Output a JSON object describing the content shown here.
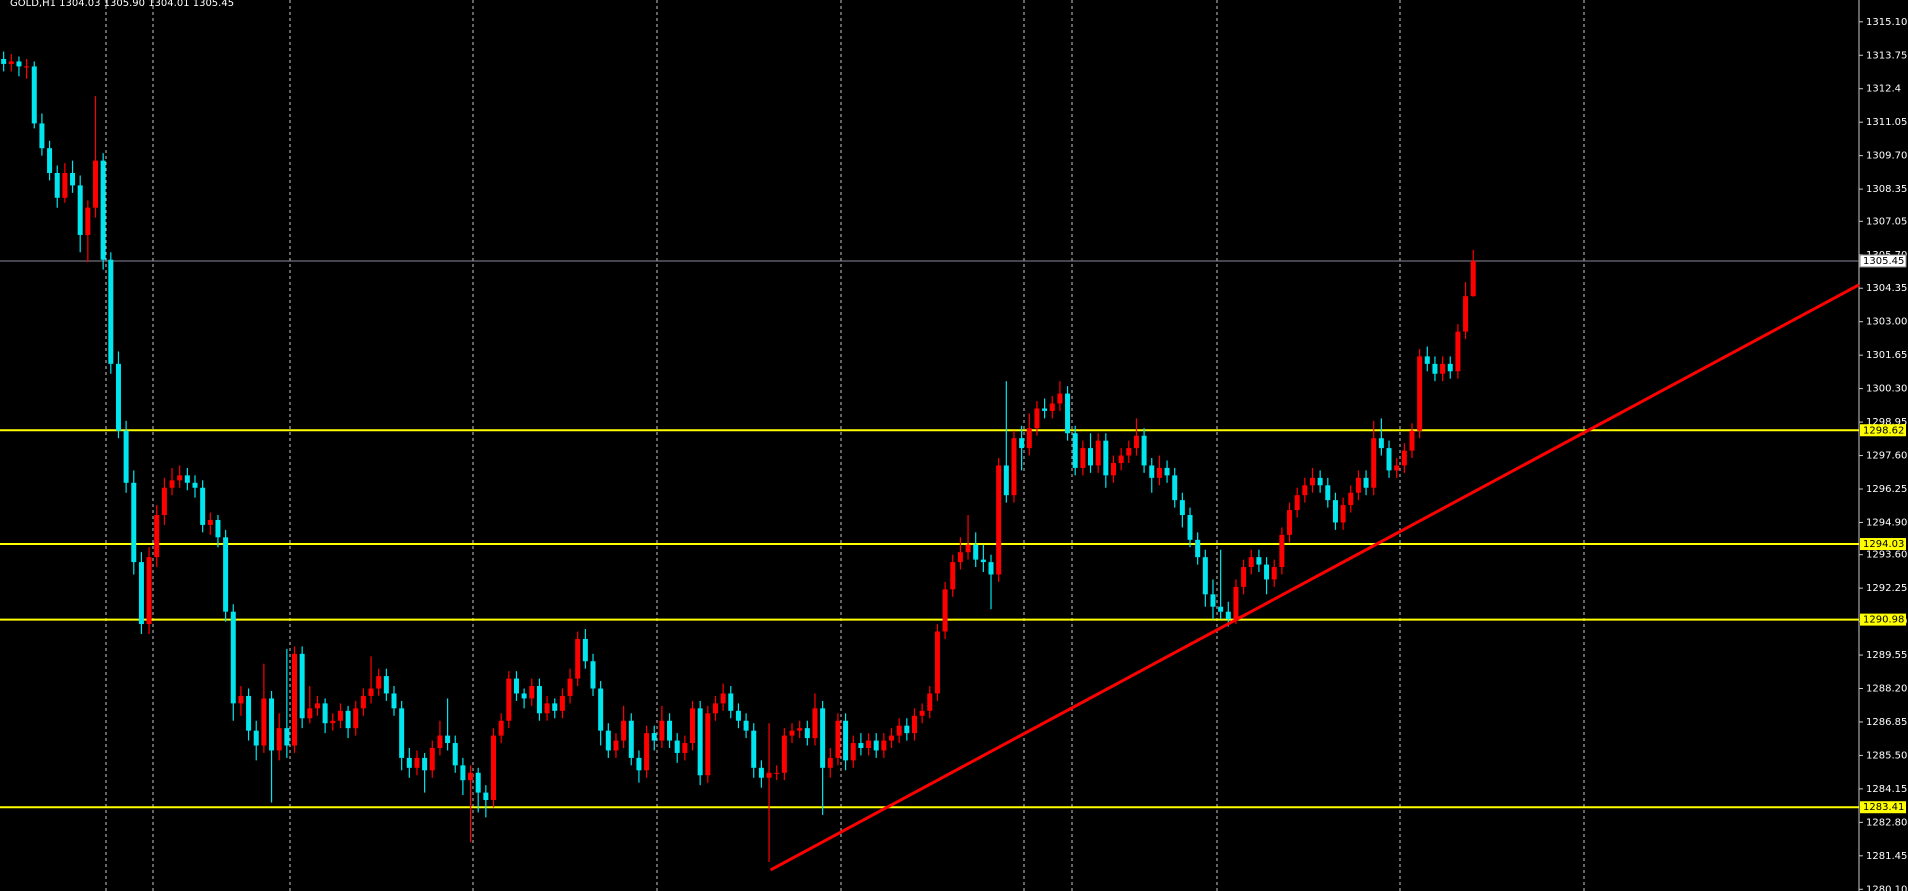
{
  "chart_data": {
    "type": "candlestick",
    "title": "GOLD,H1  1304.03 1305.90 1304.01 1305.45",
    "up_color": "#ff0000",
    "down_color": "#00e5ee",
    "level_color": "#ffff00",
    "price_line_color": "#8a8a9a",
    "ylim": [
      1280.03,
      1315.98
    ],
    "yticks": [
      {
        "value": 1315.1,
        "label": "1315.10"
      },
      1313.75,
      1312.4,
      1311.05,
      {
        "value": 1309.7,
        "label": "1309.70"
      },
      1308.35,
      1307.05,
      {
        "value": 1305.7,
        "label": "1305.70"
      },
      1304.35,
      {
        "value": 1303,
        "label": "1303.00"
      },
      1301.65,
      {
        "value": 1300.3,
        "label": "1300.30"
      },
      1298.95,
      {
        "value": 1297.6,
        "label": "1297.60"
      },
      1296.25,
      {
        "value": 1294.9,
        "label": "1294.90"
      },
      {
        "value": 1293.6,
        "label": "1293.60"
      },
      1292.25,
      {
        "value": 1290.9,
        "label": "1290.90"
      },
      1289.55,
      {
        "value": 1288.2,
        "label": "1288.20"
      },
      1286.85,
      {
        "value": 1285.5,
        "label": "1285.50"
      },
      1284.15,
      {
        "value": 1282.8,
        "label": "1282.80"
      },
      1281.45,
      {
        "value": 1280.1,
        "label": "1280.10"
      }
    ],
    "levels": [
      1298.62,
      1294.03,
      1290.98,
      1283.41
    ],
    "price_line": 1305.45,
    "trendline": {
      "x": [
        100.2,
        242.4
      ],
      "y": [
        1280.88,
        1304.49
      ],
      "color": "#ff0000"
    },
    "candles": [
      [
        1313.6,
        1313.9,
        1313.1,
        1313.4
      ],
      [
        1313.4,
        1313.8,
        1313.1,
        1313.5
      ],
      [
        1313.5,
        1313.7,
        1312.9,
        1313.3
      ],
      [
        1313.3,
        1313.6,
        1312.8,
        1313.3
      ],
      [
        1313.3,
        1313.5,
        1310.8,
        1311.0
      ],
      [
        1311.0,
        1311.4,
        1309.7,
        1310.0
      ],
      [
        1310.0,
        1310.3,
        1308.7,
        1309.0
      ],
      [
        1309.0,
        1309.3,
        1307.6,
        1308.0
      ],
      [
        1308.0,
        1309.4,
        1307.8,
        1309.0
      ],
      [
        1309.0,
        1309.5,
        1308.2,
        1308.5
      ],
      [
        1308.5,
        1308.9,
        1305.8,
        1306.5
      ],
      [
        1306.5,
        1307.9,
        1305.4,
        1307.6
      ],
      [
        1307.6,
        1312.1,
        1307.2,
        1309.5
      ],
      [
        1309.5,
        1309.8,
        1305.1,
        1305.5
      ],
      [
        1305.5,
        1305.8,
        1300.9,
        1301.3
      ],
      [
        1301.3,
        1301.8,
        1298.3,
        1298.6
      ],
      [
        1298.6,
        1299.0,
        1296.1,
        1296.5
      ],
      [
        1296.5,
        1297.0,
        1292.8,
        1293.3
      ],
      [
        1293.3,
        1293.7,
        1290.4,
        1290.8
      ],
      [
        1290.8,
        1293.9,
        1290.4,
        1293.5
      ],
      [
        1293.5,
        1295.6,
        1293.1,
        1295.2
      ],
      [
        1295.2,
        1296.7,
        1294.8,
        1296.3
      ],
      [
        1296.3,
        1297.1,
        1296.0,
        1296.6
      ],
      [
        1296.6,
        1297.2,
        1296.3,
        1296.8
      ],
      [
        1296.8,
        1297.1,
        1296.2,
        1296.5
      ],
      [
        1296.5,
        1296.8,
        1295.9,
        1296.3
      ],
      [
        1296.3,
        1296.6,
        1294.5,
        1294.8
      ],
      [
        1294.8,
        1295.3,
        1294.4,
        1295.0
      ],
      [
        1295.0,
        1295.2,
        1293.9,
        1294.3
      ],
      [
        1294.3,
        1294.6,
        1290.9,
        1291.3
      ],
      [
        1291.3,
        1291.6,
        1286.9,
        1287.6
      ],
      [
        1287.6,
        1288.3,
        1287.1,
        1287.9
      ],
      [
        1287.9,
        1288.2,
        1286.1,
        1286.5
      ],
      [
        1286.5,
        1286.9,
        1285.3,
        1285.9
      ],
      [
        1285.9,
        1289.2,
        1285.6,
        1287.8
      ],
      [
        1287.8,
        1288.1,
        1283.6,
        1285.7
      ],
      [
        1285.7,
        1287.2,
        1285.3,
        1286.6
      ],
      [
        1286.6,
        1289.8,
        1285.4,
        1285.9
      ],
      [
        1285.9,
        1289.9,
        1285.6,
        1289.6
      ],
      [
        1289.6,
        1289.9,
        1286.6,
        1287.0
      ],
      [
        1287.0,
        1288.3,
        1286.8,
        1287.4
      ],
      [
        1287.4,
        1287.9,
        1287.1,
        1287.6
      ],
      [
        1287.6,
        1287.8,
        1286.4,
        1286.8
      ],
      [
        1286.8,
        1287.2,
        1286.5,
        1286.9
      ],
      [
        1286.9,
        1287.6,
        1286.6,
        1287.3
      ],
      [
        1287.3,
        1287.5,
        1286.2,
        1286.6
      ],
      [
        1286.6,
        1287.7,
        1286.3,
        1287.4
      ],
      [
        1287.4,
        1288.2,
        1287.1,
        1287.9
      ],
      [
        1287.9,
        1289.5,
        1287.6,
        1288.2
      ],
      [
        1288.2,
        1289.0,
        1287.9,
        1288.7
      ],
      [
        1288.7,
        1289.0,
        1287.7,
        1288.0
      ],
      [
        1288.0,
        1288.3,
        1287.1,
        1287.4
      ],
      [
        1287.4,
        1287.7,
        1284.9,
        1285.4
      ],
      [
        1285.4,
        1285.8,
        1284.6,
        1285.0
      ],
      [
        1285.0,
        1285.7,
        1284.7,
        1285.4
      ],
      [
        1285.4,
        1285.6,
        1284.0,
        1284.9
      ],
      [
        1284.9,
        1286.1,
        1284.6,
        1285.8
      ],
      [
        1285.8,
        1286.9,
        1285.5,
        1286.3
      ],
      [
        1286.3,
        1287.8,
        1285.7,
        1286.0
      ],
      [
        1286.0,
        1286.3,
        1284.8,
        1285.1
      ],
      [
        1285.1,
        1285.4,
        1283.9,
        1284.5
      ],
      [
        1284.5,
        1285.1,
        1282.0,
        1284.8
      ],
      [
        1284.8,
        1285.0,
        1283.2,
        1284.0
      ],
      [
        1284.0,
        1284.3,
        1283.0,
        1283.7
      ],
      [
        1283.7,
        1286.6,
        1283.4,
        1286.3
      ],
      [
        1286.3,
        1287.2,
        1286.0,
        1286.9
      ],
      [
        1286.9,
        1288.9,
        1286.6,
        1288.6
      ],
      [
        1288.6,
        1288.9,
        1287.7,
        1288.0
      ],
      [
        1288.0,
        1288.2,
        1287.4,
        1287.8
      ],
      [
        1287.8,
        1288.6,
        1287.5,
        1288.3
      ],
      [
        1288.3,
        1288.6,
        1286.9,
        1287.2
      ],
      [
        1287.2,
        1287.9,
        1286.9,
        1287.6
      ],
      [
        1287.6,
        1287.8,
        1287.0,
        1287.3
      ],
      [
        1287.3,
        1288.2,
        1287.0,
        1287.9
      ],
      [
        1287.9,
        1289.0,
        1287.6,
        1288.6
      ],
      [
        1288.6,
        1290.5,
        1288.3,
        1290.2
      ],
      [
        1290.2,
        1290.6,
        1289.0,
        1289.3
      ],
      [
        1289.3,
        1289.6,
        1287.9,
        1288.2
      ],
      [
        1288.2,
        1288.5,
        1285.9,
        1286.5
      ],
      [
        1286.5,
        1286.8,
        1285.4,
        1285.7
      ],
      [
        1285.7,
        1286.4,
        1285.4,
        1286.1
      ],
      [
        1286.1,
        1287.5,
        1285.8,
        1286.9
      ],
      [
        1286.9,
        1287.2,
        1285.1,
        1285.4
      ],
      [
        1285.4,
        1285.7,
        1284.4,
        1284.9
      ],
      [
        1284.9,
        1286.7,
        1284.6,
        1286.4
      ],
      [
        1286.4,
        1286.7,
        1285.7,
        1286.1
      ],
      [
        1286.1,
        1287.5,
        1285.8,
        1286.9
      ],
      [
        1286.9,
        1287.2,
        1285.8,
        1286.1
      ],
      [
        1286.1,
        1286.4,
        1285.2,
        1285.6
      ],
      [
        1285.6,
        1286.3,
        1285.3,
        1286.0
      ],
      [
        1286.0,
        1287.7,
        1285.7,
        1287.4
      ],
      [
        1287.4,
        1287.7,
        1284.3,
        1284.7
      ],
      [
        1284.7,
        1287.5,
        1284.4,
        1287.2
      ],
      [
        1287.2,
        1287.9,
        1286.9,
        1287.6
      ],
      [
        1287.6,
        1288.4,
        1287.3,
        1288.0
      ],
      [
        1288.0,
        1288.3,
        1287.0,
        1287.3
      ],
      [
        1287.3,
        1287.6,
        1286.6,
        1286.9
      ],
      [
        1286.9,
        1287.2,
        1286.2,
        1286.5
      ],
      [
        1286.5,
        1286.8,
        1284.6,
        1285.0
      ],
      [
        1285.0,
        1285.3,
        1284.2,
        1284.6
      ],
      [
        1284.6,
        1286.8,
        1281.2,
        1284.8
      ],
      [
        1284.8,
        1285.1,
        1284.5,
        1284.8
      ],
      [
        1284.8,
        1286.6,
        1284.5,
        1286.3
      ],
      [
        1286.3,
        1286.8,
        1286.0,
        1286.5
      ],
      [
        1286.5,
        1286.9,
        1286.2,
        1286.6
      ],
      [
        1286.6,
        1286.9,
        1285.9,
        1286.2
      ],
      [
        1286.2,
        1288.0,
        1285.9,
        1287.4
      ],
      [
        1287.4,
        1287.7,
        1283.1,
        1285.0
      ],
      [
        1285.0,
        1285.8,
        1284.6,
        1285.4
      ],
      [
        1285.4,
        1287.2,
        1285.1,
        1286.9
      ],
      [
        1286.9,
        1287.2,
        1284.9,
        1285.3
      ],
      [
        1285.3,
        1286.3,
        1285.0,
        1286.0
      ],
      [
        1286.0,
        1286.4,
        1285.5,
        1285.8
      ],
      [
        1285.8,
        1286.4,
        1285.5,
        1286.1
      ],
      [
        1286.1,
        1286.4,
        1285.4,
        1285.7
      ],
      [
        1285.7,
        1286.4,
        1285.4,
        1286.1
      ],
      [
        1286.1,
        1286.6,
        1285.8,
        1286.3
      ],
      [
        1286.3,
        1287.0,
        1286.0,
        1286.7
      ],
      [
        1286.7,
        1287.0,
        1286.1,
        1286.4
      ],
      [
        1286.4,
        1287.4,
        1286.1,
        1287.1
      ],
      [
        1287.1,
        1287.6,
        1286.8,
        1287.3
      ],
      [
        1287.3,
        1288.3,
        1287.0,
        1288.0
      ],
      [
        1288.0,
        1290.8,
        1287.7,
        1290.5
      ],
      [
        1290.5,
        1292.5,
        1290.2,
        1292.2
      ],
      [
        1292.2,
        1293.6,
        1291.9,
        1293.3
      ],
      [
        1293.3,
        1294.3,
        1293.0,
        1293.7
      ],
      [
        1293.7,
        1295.2,
        1293.4,
        1294.0
      ],
      [
        1294.0,
        1294.5,
        1293.1,
        1293.4
      ],
      [
        1293.4,
        1294.0,
        1292.9,
        1293.3
      ],
      [
        1293.3,
        1293.6,
        1291.4,
        1292.8
      ],
      [
        1292.8,
        1297.5,
        1292.5,
        1297.2
      ],
      [
        1297.2,
        1300.6,
        1295.7,
        1296.0
      ],
      [
        1296.0,
        1298.6,
        1295.7,
        1298.3
      ],
      [
        1298.3,
        1298.8,
        1297.0,
        1297.9
      ],
      [
        1297.9,
        1299.3,
        1297.6,
        1298.7
      ],
      [
        1298.7,
        1299.8,
        1298.4,
        1299.5
      ],
      [
        1299.5,
        1299.9,
        1299.1,
        1299.4
      ],
      [
        1299.4,
        1300.0,
        1299.1,
        1299.7
      ],
      [
        1299.7,
        1300.6,
        1299.4,
        1300.1
      ],
      [
        1300.1,
        1300.4,
        1298.2,
        1298.5
      ],
      [
        1298.5,
        1298.8,
        1296.8,
        1297.1
      ],
      [
        1297.1,
        1298.2,
        1296.8,
        1297.9
      ],
      [
        1297.9,
        1298.5,
        1296.9,
        1297.2
      ],
      [
        1297.2,
        1298.5,
        1296.9,
        1298.2
      ],
      [
        1298.2,
        1298.5,
        1296.3,
        1296.8
      ],
      [
        1296.8,
        1297.6,
        1296.5,
        1297.3
      ],
      [
        1297.3,
        1297.9,
        1297.0,
        1297.6
      ],
      [
        1297.6,
        1298.2,
        1297.3,
        1297.9
      ],
      [
        1297.9,
        1299.1,
        1297.6,
        1298.4
      ],
      [
        1298.4,
        1298.7,
        1296.9,
        1297.2
      ],
      [
        1297.2,
        1297.5,
        1296.1,
        1296.7
      ],
      [
        1296.7,
        1297.6,
        1296.4,
        1297.1
      ],
      [
        1297.1,
        1297.4,
        1296.5,
        1296.8
      ],
      [
        1296.8,
        1297.1,
        1295.5,
        1295.8
      ],
      [
        1295.8,
        1296.1,
        1294.7,
        1295.2
      ],
      [
        1295.2,
        1295.5,
        1293.9,
        1294.2
      ],
      [
        1294.2,
        1294.5,
        1293.2,
        1293.5
      ],
      [
        1293.5,
        1293.8,
        1291.5,
        1292.0
      ],
      [
        1292.0,
        1292.6,
        1291.0,
        1291.5
      ],
      [
        1291.5,
        1293.8,
        1291.0,
        1291.3
      ],
      [
        1291.3,
        1291.7,
        1290.7,
        1291.0
      ],
      [
        1291.0,
        1292.6,
        1290.8,
        1292.3
      ],
      [
        1292.3,
        1293.4,
        1292.0,
        1293.1
      ],
      [
        1293.1,
        1293.8,
        1292.8,
        1293.5
      ],
      [
        1293.5,
        1293.8,
        1292.9,
        1293.2
      ],
      [
        1293.2,
        1293.5,
        1292.0,
        1292.6
      ],
      [
        1292.6,
        1293.4,
        1292.3,
        1293.1
      ],
      [
        1293.1,
        1294.7,
        1292.8,
        1294.4
      ],
      [
        1294.4,
        1295.7,
        1294.1,
        1295.4
      ],
      [
        1295.4,
        1296.3,
        1295.1,
        1296.0
      ],
      [
        1296.0,
        1296.7,
        1295.7,
        1296.4
      ],
      [
        1296.4,
        1297.1,
        1296.1,
        1296.7
      ],
      [
        1296.7,
        1297.0,
        1296.1,
        1296.4
      ],
      [
        1296.4,
        1296.7,
        1295.5,
        1295.8
      ],
      [
        1295.8,
        1296.1,
        1294.6,
        1294.9
      ],
      [
        1294.9,
        1295.9,
        1294.6,
        1295.6
      ],
      [
        1295.6,
        1296.4,
        1295.3,
        1296.1
      ],
      [
        1296.1,
        1297.0,
        1295.8,
        1296.7
      ],
      [
        1296.7,
        1297.0,
        1296.0,
        1296.3
      ],
      [
        1296.3,
        1299.0,
        1296.0,
        1298.3
      ],
      [
        1298.3,
        1299.1,
        1297.6,
        1297.9
      ],
      [
        1297.9,
        1298.2,
        1296.7,
        1297.0
      ],
      [
        1297.0,
        1297.5,
        1296.7,
        1297.2
      ],
      [
        1297.2,
        1298.1,
        1296.9,
        1297.8
      ],
      [
        1297.8,
        1298.9,
        1297.5,
        1298.6
      ],
      [
        1298.6,
        1301.9,
        1298.3,
        1301.6
      ],
      [
        1301.6,
        1302.0,
        1301.0,
        1301.3
      ],
      [
        1301.3,
        1301.6,
        1300.6,
        1300.9
      ],
      [
        1300.9,
        1301.6,
        1300.6,
        1301.3
      ],
      [
        1301.3,
        1301.6,
        1300.7,
        1301.0
      ],
      [
        1301.0,
        1302.9,
        1300.7,
        1302.6
      ],
      [
        1302.6,
        1304.6,
        1302.3,
        1304.03
      ],
      [
        1304.03,
        1305.9,
        1304.01,
        1305.45
      ]
    ]
  }
}
